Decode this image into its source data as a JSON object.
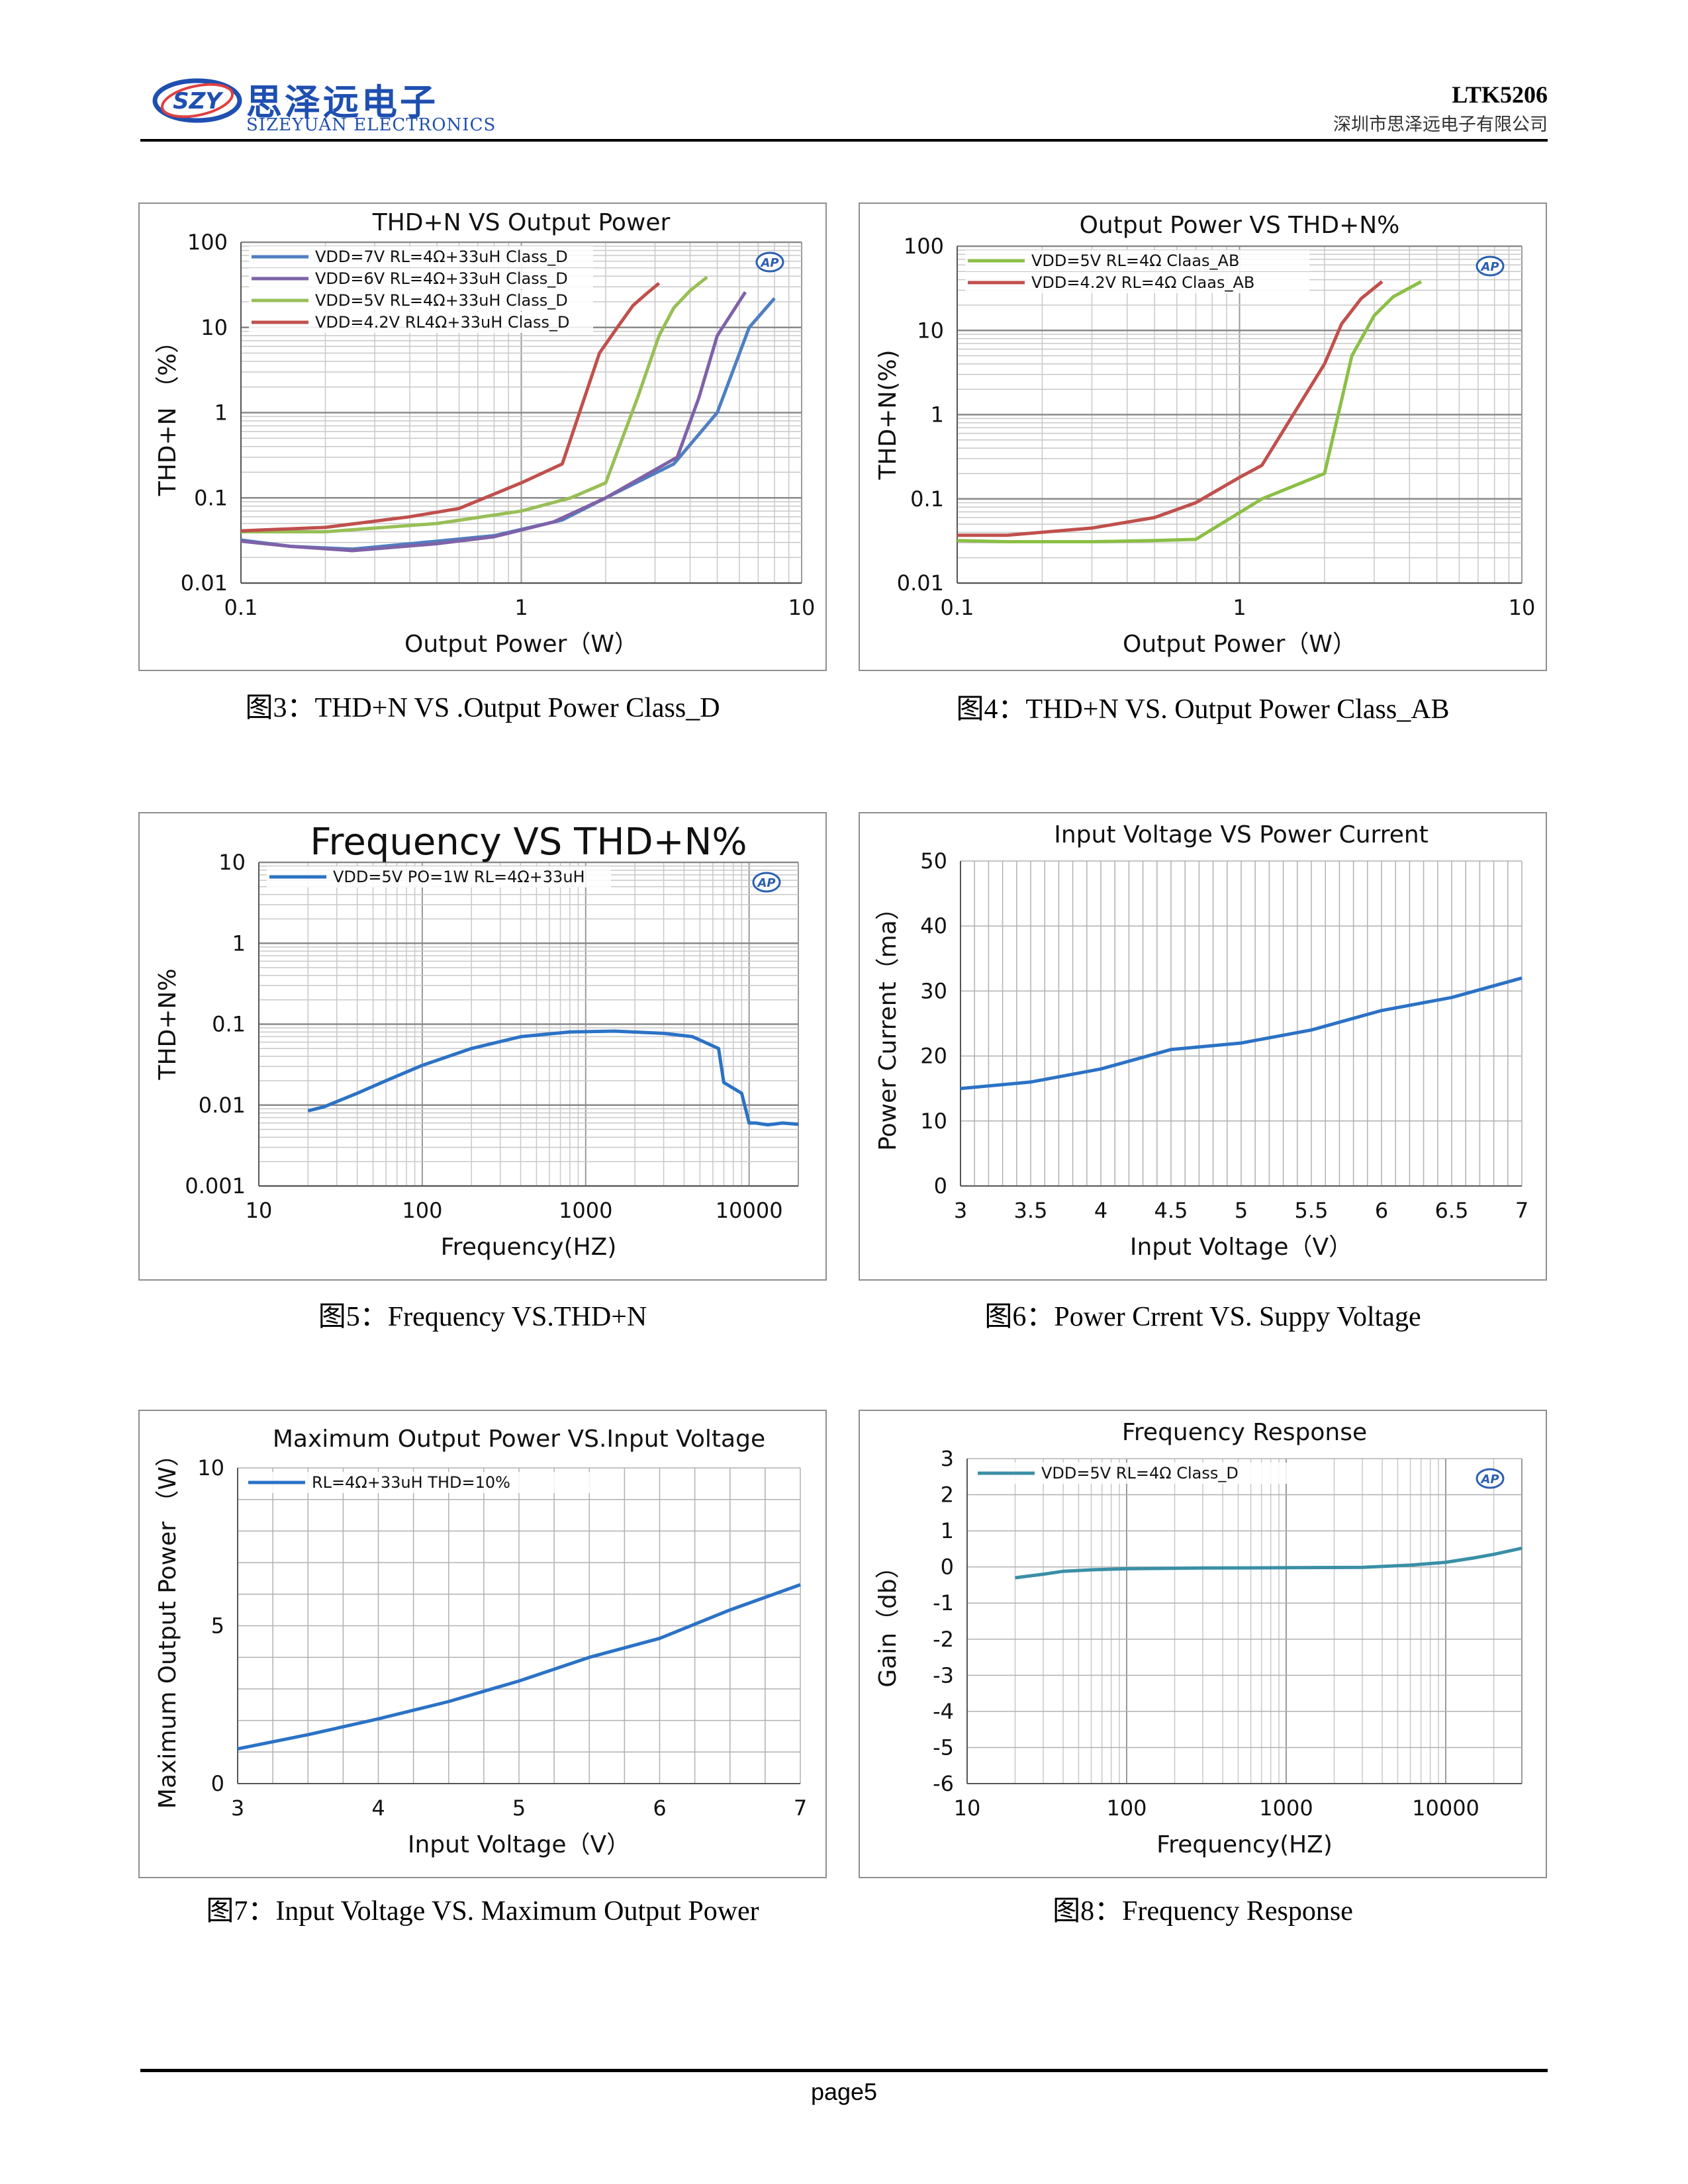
{
  "header": {
    "logo_badge": "SZY",
    "logo_cn": "思泽远电子",
    "logo_en": "SIZEYUAN ELECTRONICS",
    "model": "LTK5206",
    "company": "深圳市思泽远电子有限公司"
  },
  "footer": {
    "page": "page5"
  },
  "captions": [
    "图3：THD+N VS .Output Power Class_D",
    "图4：THD+N VS. Output Power Class_AB",
    "图5：Frequency VS.THD+N",
    "图6：Power Crrent VS. Suppy Voltage",
    "图7：Input Voltage VS. Maximum Output Power",
    "图8：Frequency Response"
  ],
  "chart_data": [
    {
      "type": "line",
      "title": "THD+N VS Output Power",
      "xlabel": "Output Power（W）",
      "ylabel": "THD+N （%）",
      "xscale": "log",
      "yscale": "log",
      "xlim": [
        0.1,
        10
      ],
      "ylim": [
        0.01,
        100
      ],
      "xticks": [
        "0.1",
        "1",
        "10"
      ],
      "yticks": [
        "0.01",
        "0.1",
        "1",
        "10",
        "100"
      ],
      "grid": true,
      "legend": "top-left",
      "badge": "AP",
      "series": [
        {
          "name": "VDD=7V  RL=4Ω+33uH Class_D",
          "color": "#4f7fc1",
          "x": [
            0.1,
            0.15,
            0.25,
            0.5,
            0.8,
            1.4,
            2.0,
            3.5,
            5.0,
            6.5,
            8.0
          ],
          "y": [
            0.032,
            0.027,
            0.025,
            0.031,
            0.036,
            0.055,
            0.1,
            0.25,
            1.0,
            10,
            22
          ]
        },
        {
          "name": "VDD=6V  RL=4Ω+33uH Class_D",
          "color": "#7e62a8",
          "x": [
            0.1,
            0.15,
            0.25,
            0.5,
            0.8,
            1.3,
            2.0,
            3.6,
            4.3,
            5.0,
            6.3
          ],
          "y": [
            0.031,
            0.027,
            0.024,
            0.029,
            0.035,
            0.052,
            0.1,
            0.3,
            1.5,
            8,
            26
          ]
        },
        {
          "name": "VDD=5V  RL=4Ω+33uH Class_D",
          "color": "#98bf57",
          "x": [
            0.1,
            0.2,
            0.5,
            1.0,
            1.5,
            2.0,
            2.6,
            3.1,
            3.5,
            4.0,
            4.6
          ],
          "y": [
            0.04,
            0.04,
            0.05,
            0.07,
            0.1,
            0.15,
            1.5,
            8,
            17,
            27,
            39
          ]
        },
        {
          "name": "VDD=4.2V  RL4Ω+33uH Class_D",
          "color": "#c0504d",
          "x": [
            0.1,
            0.2,
            0.4,
            0.6,
            1.0,
            1.4,
            1.9,
            2.2,
            2.5,
            2.8,
            3.1
          ],
          "y": [
            0.041,
            0.045,
            0.06,
            0.075,
            0.15,
            0.25,
            5,
            10,
            18,
            25,
            33
          ]
        }
      ]
    },
    {
      "type": "line",
      "title": "Output Power VS THD+N%",
      "xlabel": "Output Power（W）",
      "ylabel": "THD+N(%)",
      "xscale": "log",
      "yscale": "log",
      "xlim": [
        0.1,
        10
      ],
      "ylim": [
        0.01,
        100
      ],
      "xticks": [
        "0.1",
        "1",
        "10"
      ],
      "yticks": [
        "0.01",
        "0.1",
        "1",
        "10",
        "100"
      ],
      "grid": true,
      "legend": "top-left",
      "badge": "AP",
      "series": [
        {
          "name": "VDD=5V  RL=4Ω Claas_AB",
          "color": "#8bbf46",
          "x": [
            0.1,
            0.15,
            0.3,
            0.5,
            0.7,
            1.2,
            2.0,
            2.5,
            3.0,
            3.5,
            4.4
          ],
          "y": [
            0.032,
            0.031,
            0.031,
            0.032,
            0.033,
            0.1,
            0.2,
            5,
            15,
            25,
            38
          ]
        },
        {
          "name": "VDD=4.2V  RL=4Ω Claas_AB",
          "color": "#c0504d",
          "x": [
            0.1,
            0.15,
            0.3,
            0.5,
            0.7,
            1.0,
            1.2,
            2.0,
            2.3,
            2.7,
            3.2
          ],
          "y": [
            0.037,
            0.037,
            0.045,
            0.06,
            0.09,
            0.18,
            0.25,
            4,
            12,
            24,
            38
          ]
        }
      ]
    },
    {
      "type": "line",
      "title": "Frequency VS THD+N%",
      "xlabel": "Frequency(HZ)",
      "ylabel": "THD+N%",
      "xscale": "log",
      "yscale": "log",
      "xlim": [
        10,
        20000
      ],
      "ylim": [
        0.001,
        10
      ],
      "xticks": [
        "10",
        "100",
        "1000",
        "10000"
      ],
      "yticks": [
        "0.001",
        "0.01",
        "0.1",
        "1",
        "10"
      ],
      "grid": true,
      "legend": "top-left",
      "badge": "AP",
      "series": [
        {
          "name": "VDD=5V  PO=1W RL=4Ω+33uH",
          "color": "#2b72c6",
          "x": [
            20,
            25,
            40,
            60,
            100,
            200,
            400,
            800,
            1500,
            3000,
            4500,
            6500,
            7000,
            9000,
            10000,
            11000,
            13000,
            16000,
            20000
          ],
          "y": [
            0.0085,
            0.0095,
            0.014,
            0.02,
            0.031,
            0.05,
            0.07,
            0.08,
            0.082,
            0.077,
            0.07,
            0.05,
            0.019,
            0.014,
            0.006,
            0.006,
            0.0057,
            0.006,
            0.0058
          ]
        }
      ]
    },
    {
      "type": "line",
      "title": "Input Voltage VS Power Current",
      "xlabel": "Input Voltage（V）",
      "ylabel": "Power Current（ma）",
      "xlim": [
        3,
        7
      ],
      "ylim": [
        0,
        50
      ],
      "xticks": [
        "3",
        "3.5",
        "4",
        "4.5",
        "5",
        "5.5",
        "6",
        "6.5",
        "7"
      ],
      "yticks": [
        "0",
        "10",
        "20",
        "30",
        "40",
        "50"
      ],
      "grid": true,
      "series": [
        {
          "color": "#2b72c6",
          "x": [
            3,
            3.5,
            4,
            4.5,
            5,
            5.5,
            6,
            6.5,
            7
          ],
          "y": [
            15,
            16,
            18,
            21,
            22,
            24,
            27,
            29,
            32
          ]
        }
      ]
    },
    {
      "type": "line",
      "title": "Maximum Output Power VS.Input Voltage",
      "xlabel": "Input Voltage（V）",
      "ylabel": "Maximum Output Power （W）",
      "xlim": [
        3,
        7
      ],
      "ylim": [
        0,
        10
      ],
      "xticks": [
        "3",
        "4",
        "5",
        "6",
        "7"
      ],
      "yticks": [
        "0",
        "5",
        "10"
      ],
      "grid": true,
      "legend": "top-left",
      "series": [
        {
          "name": "RL=4Ω+33uH THD=10%",
          "color": "#2b72c6",
          "x": [
            3,
            3.5,
            4,
            4.5,
            5,
            5.5,
            6,
            6.5,
            7
          ],
          "y": [
            1.1,
            1.55,
            2.05,
            2.6,
            3.25,
            4.0,
            4.6,
            5.5,
            6.3
          ]
        }
      ]
    },
    {
      "type": "line",
      "title": "Frequency Response",
      "xlabel": "Frequency(HZ)",
      "ylabel": "Gain（db）",
      "xscale": "log",
      "xlim": [
        10,
        30000
      ],
      "ylim": [
        -6,
        3
      ],
      "xticks": [
        "10",
        "100",
        "1000",
        "10000"
      ],
      "yticks": [
        "-6",
        "-5",
        "-4",
        "-3",
        "-2",
        "-1",
        "0",
        "1",
        "2",
        "3"
      ],
      "grid": true,
      "legend": "top-left",
      "badge": "AP",
      "series": [
        {
          "name": "VDD=5V RL=4Ω Class_D",
          "color": "#3a8fa6",
          "x": [
            20,
            30,
            40,
            60,
            100,
            300,
            1000,
            3000,
            6000,
            10000,
            15000,
            20000,
            30000
          ],
          "y": [
            -0.3,
            -0.2,
            -0.12,
            -0.08,
            -0.05,
            -0.03,
            -0.02,
            -0.01,
            0.05,
            0.13,
            0.25,
            0.35,
            0.52
          ]
        }
      ]
    }
  ]
}
